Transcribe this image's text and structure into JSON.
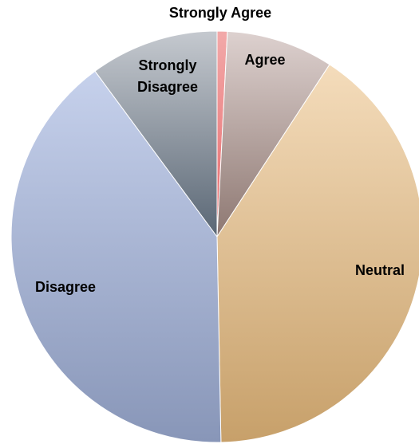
{
  "chart_data": {
    "type": "pie",
    "title": "",
    "legend": "none",
    "start_angle_deg": 0,
    "direction": "clockwise",
    "slices": [
      {
        "label": "Strongly Agree",
        "value": 0.8,
        "color_light": "#f2a9a9",
        "color_dark": "#e8696b"
      },
      {
        "label": "Agree",
        "value": 8.4,
        "color_light": "#ddd1cf",
        "color_dark": "#8e7872"
      },
      {
        "label": "Neutral",
        "value": 40.5,
        "color_light": "#f4dcbb",
        "color_dark": "#c7a06a"
      },
      {
        "label": "Disagree",
        "value": 40.2,
        "color_light": "#c6d1ec",
        "color_dark": "#8896b8"
      },
      {
        "label": "Strongly Disagree",
        "value": 10.1,
        "color_light": "#c5c9cf",
        "color_dark": "#5a6775"
      }
    ]
  }
}
